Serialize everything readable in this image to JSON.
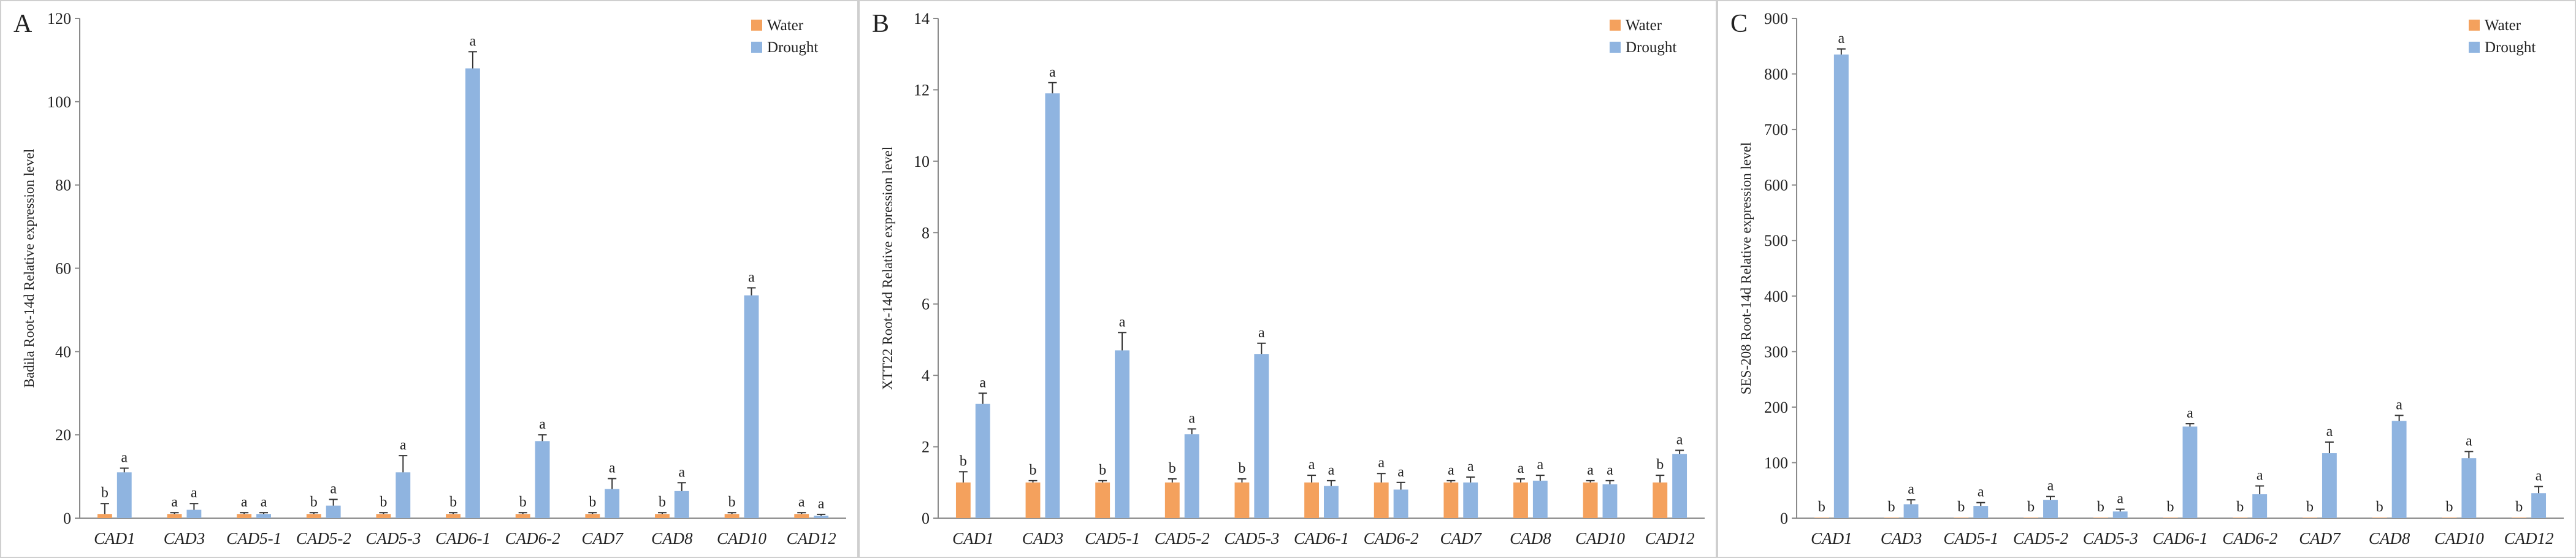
{
  "chart_data": [
    {
      "type": "bar",
      "panel_label": "A",
      "ylabel": "Badila Root-14d Relative expression level",
      "ylim": [
        0,
        120
      ],
      "yticks": [
        0,
        20,
        40,
        60,
        80,
        100,
        120
      ],
      "categories": [
        "CAD1",
        "CAD3",
        "CAD5-1",
        "CAD5-2",
        "CAD5-3",
        "CAD6-1",
        "CAD6-2",
        "CAD7",
        "CAD8",
        "CAD10",
        "CAD12"
      ],
      "legend_position": "top-right",
      "series": [
        {
          "name": "Water",
          "color": "#f4a15d",
          "values": [
            1.0,
            1.0,
            1.0,
            1.0,
            1.0,
            1.0,
            1.0,
            1.0,
            1.0,
            1.0,
            1.0
          ],
          "errors": [
            2.5,
            0.3,
            0.3,
            0.3,
            0.3,
            0.3,
            0.3,
            0.3,
            0.3,
            0.3,
            0.3
          ],
          "sig": [
            "b",
            "a",
            "a",
            "b",
            "b",
            "b",
            "b",
            "b",
            "b",
            "b",
            "a"
          ]
        },
        {
          "name": "Drought",
          "color": "#8fb4e0",
          "values": [
            11.0,
            2.0,
            1.0,
            3.0,
            11.0,
            108.0,
            18.5,
            7.0,
            6.5,
            53.5,
            0.6
          ],
          "errors": [
            1.0,
            1.5,
            0.3,
            1.5,
            4.0,
            4.0,
            1.5,
            2.5,
            2.0,
            1.8,
            0.3
          ],
          "sig": [
            "a",
            "a",
            "a",
            "a",
            "a",
            "a",
            "a",
            "a",
            "a",
            "a",
            "a"
          ]
        }
      ]
    },
    {
      "type": "bar",
      "panel_label": "B",
      "ylabel": "XTT22 Root-14d Relative expression level",
      "ylim": [
        0,
        14
      ],
      "yticks": [
        0,
        2,
        4,
        6,
        8,
        10,
        12,
        14
      ],
      "categories": [
        "CAD1",
        "CAD3",
        "CAD5-1",
        "CAD5-2",
        "CAD5-3",
        "CAD6-1",
        "CAD6-2",
        "CAD7",
        "CAD8",
        "CAD10",
        "CAD12"
      ],
      "legend_position": "top-right",
      "series": [
        {
          "name": "Water",
          "color": "#f4a15d",
          "values": [
            1.0,
            1.0,
            1.0,
            1.0,
            1.0,
            1.0,
            1.0,
            1.0,
            1.0,
            1.0,
            1.0
          ],
          "errors": [
            0.3,
            0.05,
            0.05,
            0.1,
            0.1,
            0.2,
            0.25,
            0.05,
            0.1,
            0.05,
            0.2
          ],
          "sig": [
            "b",
            "b",
            "b",
            "b",
            "b",
            "a",
            "a",
            "a",
            "a",
            "a",
            "b"
          ]
        },
        {
          "name": "Drought",
          "color": "#8fb4e0",
          "values": [
            3.2,
            11.9,
            4.7,
            2.35,
            4.6,
            0.9,
            0.8,
            1.0,
            1.05,
            0.95,
            1.8
          ],
          "errors": [
            0.3,
            0.3,
            0.5,
            0.15,
            0.3,
            0.15,
            0.2,
            0.15,
            0.15,
            0.1,
            0.1
          ],
          "sig": [
            "a",
            "a",
            "a",
            "a",
            "a",
            "a",
            "a",
            "a",
            "a",
            "a",
            "a"
          ]
        }
      ]
    },
    {
      "type": "bar",
      "panel_label": "C",
      "ylabel": "SES-208 Root-14d Relative expression level",
      "ylim": [
        0,
        900
      ],
      "yticks": [
        0,
        100,
        200,
        300,
        400,
        500,
        600,
        700,
        800,
        900
      ],
      "categories": [
        "CAD1",
        "CAD3",
        "CAD5-1",
        "CAD5-2",
        "CAD5-3",
        "CAD6-1",
        "CAD6-2",
        "CAD7",
        "CAD8",
        "CAD10",
        "CAD12"
      ],
      "legend_position": "top-right",
      "series": [
        {
          "name": "Water",
          "color": "#f4a15d",
          "values": [
            1.0,
            1.0,
            1.0,
            1.0,
            1.0,
            1.0,
            1.0,
            1.0,
            1.0,
            1.0,
            1.0
          ],
          "errors": [
            0,
            0,
            0,
            0,
            0,
            0,
            0,
            0,
            0,
            0,
            0
          ],
          "sig": [
            "b",
            "b",
            "b",
            "b",
            "b",
            "b",
            "b",
            "b",
            "b",
            "b",
            "b"
          ]
        },
        {
          "name": "Drought",
          "color": "#8fb4e0",
          "values": [
            835,
            25,
            22,
            33,
            12,
            165,
            43,
            117,
            175,
            108,
            45
          ],
          "errors": [
            10,
            8,
            6,
            6,
            4,
            5,
            15,
            20,
            10,
            12,
            12
          ],
          "sig": [
            "a",
            "a",
            "a",
            "a",
            "a",
            "a",
            "a",
            "a",
            "a",
            "a",
            "a"
          ]
        }
      ]
    }
  ]
}
